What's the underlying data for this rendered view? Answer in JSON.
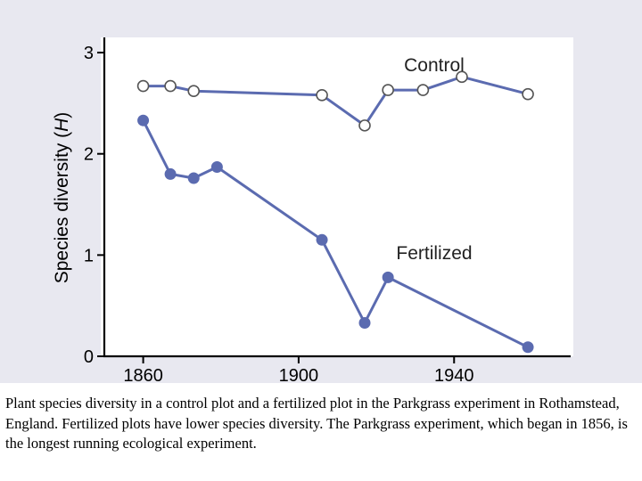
{
  "chart_data": {
    "type": "line",
    "ylabel": "Species diversity (H)",
    "ylabel_main": "Species diversity (",
    "ylabel_var": "H",
    "ylabel_close": ")",
    "xlim": [
      1850,
      1970
    ],
    "ylim": [
      0,
      3.15
    ],
    "xticks": [
      1860,
      1900,
      1940
    ],
    "yticks": [
      0,
      1,
      2,
      3
    ],
    "series": [
      {
        "name": "Control",
        "color": "#5b6bb0",
        "filled": false,
        "x": [
          1860,
          1867,
          1873,
          1906,
          1917,
          1923,
          1932,
          1942,
          1959
        ],
        "y": [
          2.67,
          2.67,
          2.62,
          2.58,
          2.28,
          2.63,
          2.63,
          2.76,
          2.59
        ]
      },
      {
        "name": "Fertilized",
        "color": "#5b6bb0",
        "filled": true,
        "x": [
          1860,
          1867,
          1873,
          1879,
          1906,
          1917,
          1923,
          1959
        ],
        "y": [
          2.33,
          1.8,
          1.76,
          1.87,
          1.15,
          0.33,
          0.78,
          0.09
        ]
      }
    ]
  },
  "caption": "Plant species diversity in a control plot and a fertilized plot in the Parkgrass experiment in Rothamstead, England.  Fertilized plots have lower species diversity.  The Parkgrass experiment, which began in 1856,  is the longest running ecological experiment."
}
